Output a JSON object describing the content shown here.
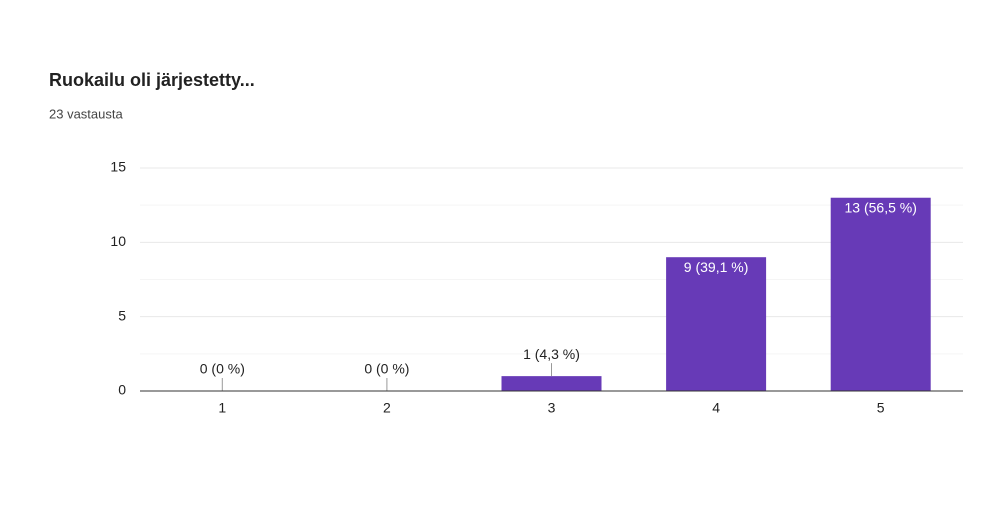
{
  "chart_data": {
    "type": "bar",
    "title": "Ruokailu oli järjestetty...",
    "subtitle": "23 vastausta",
    "categories": [
      "1",
      "2",
      "3",
      "4",
      "5"
    ],
    "values": [
      0,
      0,
      1,
      9,
      13
    ],
    "value_labels": [
      "0 (0 %)",
      "0 (0 %)",
      "1 (4,3 %)",
      "9 (39,1 %)",
      "13 (56,5 %)"
    ],
    "color": "#673ab7",
    "ylim": [
      0,
      15
    ],
    "yticks": [
      0,
      5,
      10,
      15
    ],
    "minor_yticks": [
      2.5,
      7.5,
      12.5
    ],
    "grid": true
  }
}
